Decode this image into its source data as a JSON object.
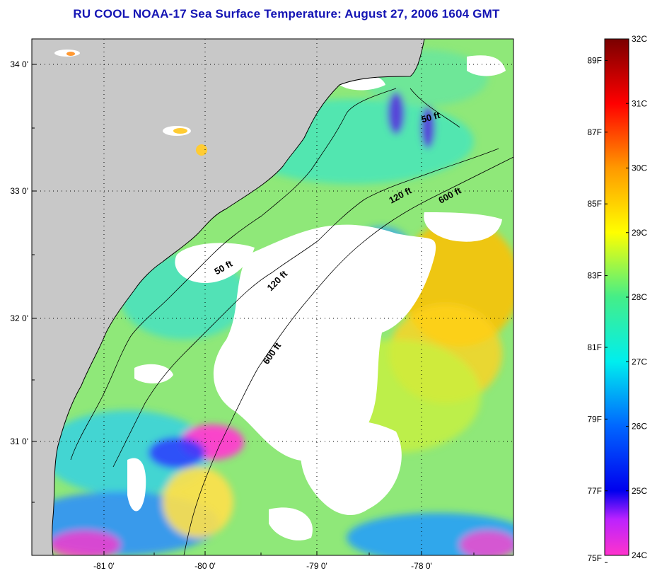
{
  "title": "RU COOL  NOAA-17  Sea Surface Temperature:  August 27, 2006 1604 GMT",
  "colors": {
    "land": "#c8c8c8",
    "cloud": "#ffffff",
    "title": "#1414b4"
  },
  "map": {
    "lat_labels": [
      "34 0'",
      "33 0'",
      "32 0'",
      "31 0'"
    ],
    "lon_labels": [
      "-81 0'",
      "-80 0'",
      "-79 0'",
      "-78 0'"
    ],
    "contours": {
      "c50_north": "50 ft",
      "c50_south": "50 ft",
      "c120_north": "120 ft",
      "c120_south": "120 ft",
      "c600_north": "600 ft",
      "c600_south": "600 ft"
    }
  },
  "colorbar": {
    "celsius": [
      "32C",
      "31C",
      "30C",
      "29C",
      "28C",
      "27C",
      "26C",
      "25C",
      "24C"
    ],
    "fahrenheit": [
      "89F",
      "87F",
      "85F",
      "83F",
      "81F",
      "79F",
      "77F",
      "75F"
    ]
  }
}
